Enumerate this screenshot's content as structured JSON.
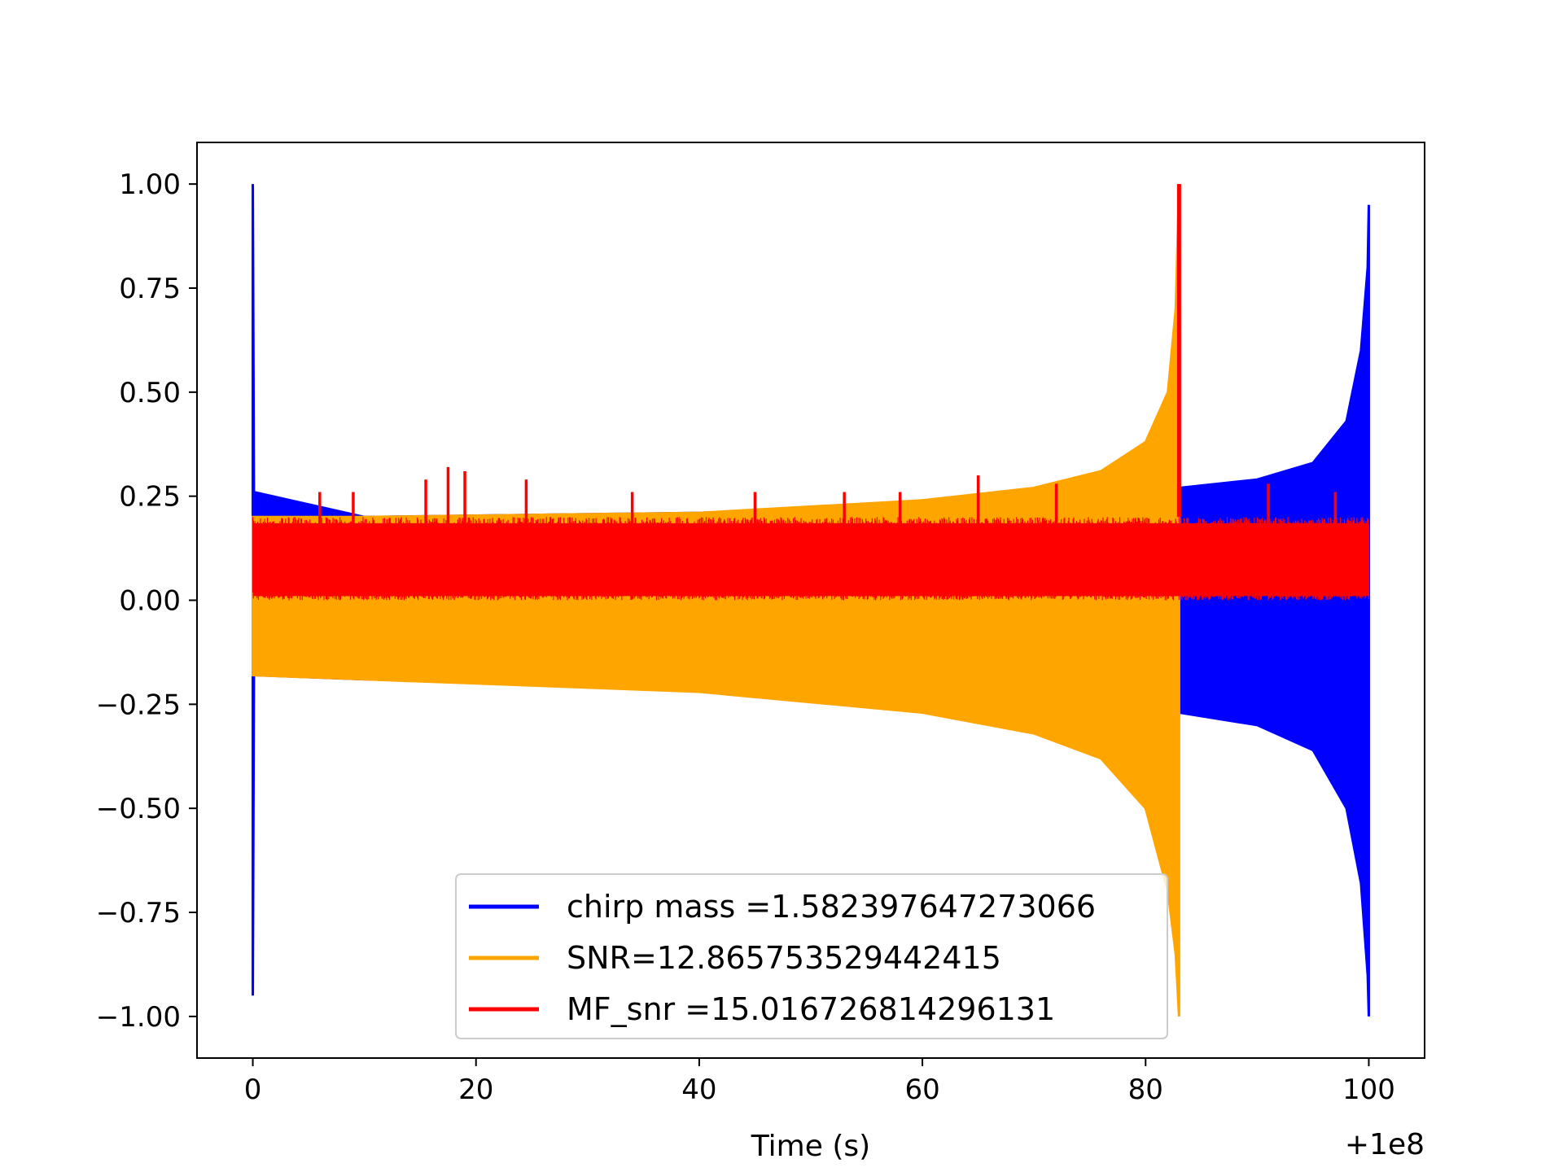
{
  "chart_data": {
    "type": "line",
    "title": "",
    "xlabel": "Time (s)",
    "ylabel": "",
    "x_offset_label": "+1e8",
    "xlim": [
      -5,
      105
    ],
    "ylim": [
      -1.1,
      1.1
    ],
    "x_ticks": [
      0,
      20,
      40,
      60,
      80,
      100
    ],
    "x_tick_labels": [
      "0",
      "20",
      "40",
      "60",
      "80",
      "100"
    ],
    "y_ticks": [
      1.0,
      0.75,
      0.5,
      0.25,
      0.0,
      -0.25,
      -0.5,
      -0.75,
      -1.0
    ],
    "y_tick_labels": [
      "1.00",
      "0.75",
      "0.50",
      "0.25",
      "0.00",
      "−0.25",
      "−0.50",
      "−0.75",
      "−1.00"
    ],
    "grid": false,
    "legend_position": "lower center",
    "series": [
      {
        "name": "chirp mass =1.582397647273066",
        "color": "#0000ff",
        "style": "chirp envelope",
        "upper": [
          {
            "x": 0.0,
            "y": 1.0
          },
          {
            "x": 0.1,
            "y": 0.26
          },
          {
            "x": 10,
            "y": 0.2
          },
          {
            "x": 40,
            "y": 0.21
          },
          {
            "x": 60,
            "y": 0.23
          },
          {
            "x": 83,
            "y": 0.27
          },
          {
            "x": 90,
            "y": 0.29
          },
          {
            "x": 95,
            "y": 0.33
          },
          {
            "x": 98,
            "y": 0.43
          },
          {
            "x": 99.3,
            "y": 0.6
          },
          {
            "x": 99.9,
            "y": 0.8
          },
          {
            "x": 100.0,
            "y": 0.95
          }
        ],
        "lower": [
          {
            "x": 0.0,
            "y": -0.95
          },
          {
            "x": 0.1,
            "y": -0.18
          },
          {
            "x": 10,
            "y": -0.19
          },
          {
            "x": 40,
            "y": -0.21
          },
          {
            "x": 60,
            "y": -0.23
          },
          {
            "x": 83,
            "y": -0.27
          },
          {
            "x": 90,
            "y": -0.3
          },
          {
            "x": 95,
            "y": -0.36
          },
          {
            "x": 98,
            "y": -0.5
          },
          {
            "x": 99.3,
            "y": -0.68
          },
          {
            "x": 99.9,
            "y": -0.9
          },
          {
            "x": 100.0,
            "y": -1.0
          }
        ]
      },
      {
        "name": "SNR=12.865753529442415",
        "color": "#ffa500",
        "style": "chirp envelope",
        "upper": [
          {
            "x": 0.0,
            "y": 0.2
          },
          {
            "x": 10,
            "y": 0.2
          },
          {
            "x": 40,
            "y": 0.21
          },
          {
            "x": 60,
            "y": 0.24
          },
          {
            "x": 70,
            "y": 0.27
          },
          {
            "x": 76,
            "y": 0.31
          },
          {
            "x": 80,
            "y": 0.38
          },
          {
            "x": 82,
            "y": 0.5
          },
          {
            "x": 82.7,
            "y": 0.7
          },
          {
            "x": 83.0,
            "y": 1.0
          }
        ],
        "lower": [
          {
            "x": 0.0,
            "y": -0.18
          },
          {
            "x": 10,
            "y": -0.19
          },
          {
            "x": 40,
            "y": -0.22
          },
          {
            "x": 60,
            "y": -0.27
          },
          {
            "x": 70,
            "y": -0.32
          },
          {
            "x": 76,
            "y": -0.38
          },
          {
            "x": 80,
            "y": -0.5
          },
          {
            "x": 82,
            "y": -0.7
          },
          {
            "x": 82.7,
            "y": -0.85
          },
          {
            "x": 83.0,
            "y": -1.0
          }
        ]
      },
      {
        "name": "MF_snr =15.016726814296131",
        "color": "#ff0000",
        "style": "noisy band",
        "x_range": [
          0,
          100
        ],
        "band_low": 0.0,
        "band_high": 0.2,
        "peak": {
          "x": 83.0,
          "y": 1.0
        },
        "spikes": [
          {
            "x": 6,
            "y": 0.26
          },
          {
            "x": 9,
            "y": 0.26
          },
          {
            "x": 15.5,
            "y": 0.29
          },
          {
            "x": 17.5,
            "y": 0.32
          },
          {
            "x": 19,
            "y": 0.31
          },
          {
            "x": 24.5,
            "y": 0.29
          },
          {
            "x": 34,
            "y": 0.26
          },
          {
            "x": 45,
            "y": 0.26
          },
          {
            "x": 53,
            "y": 0.26
          },
          {
            "x": 58,
            "y": 0.26
          },
          {
            "x": 65,
            "y": 0.3
          },
          {
            "x": 72,
            "y": 0.28
          },
          {
            "x": 91,
            "y": 0.28
          },
          {
            "x": 97,
            "y": 0.26
          }
        ]
      }
    ]
  }
}
